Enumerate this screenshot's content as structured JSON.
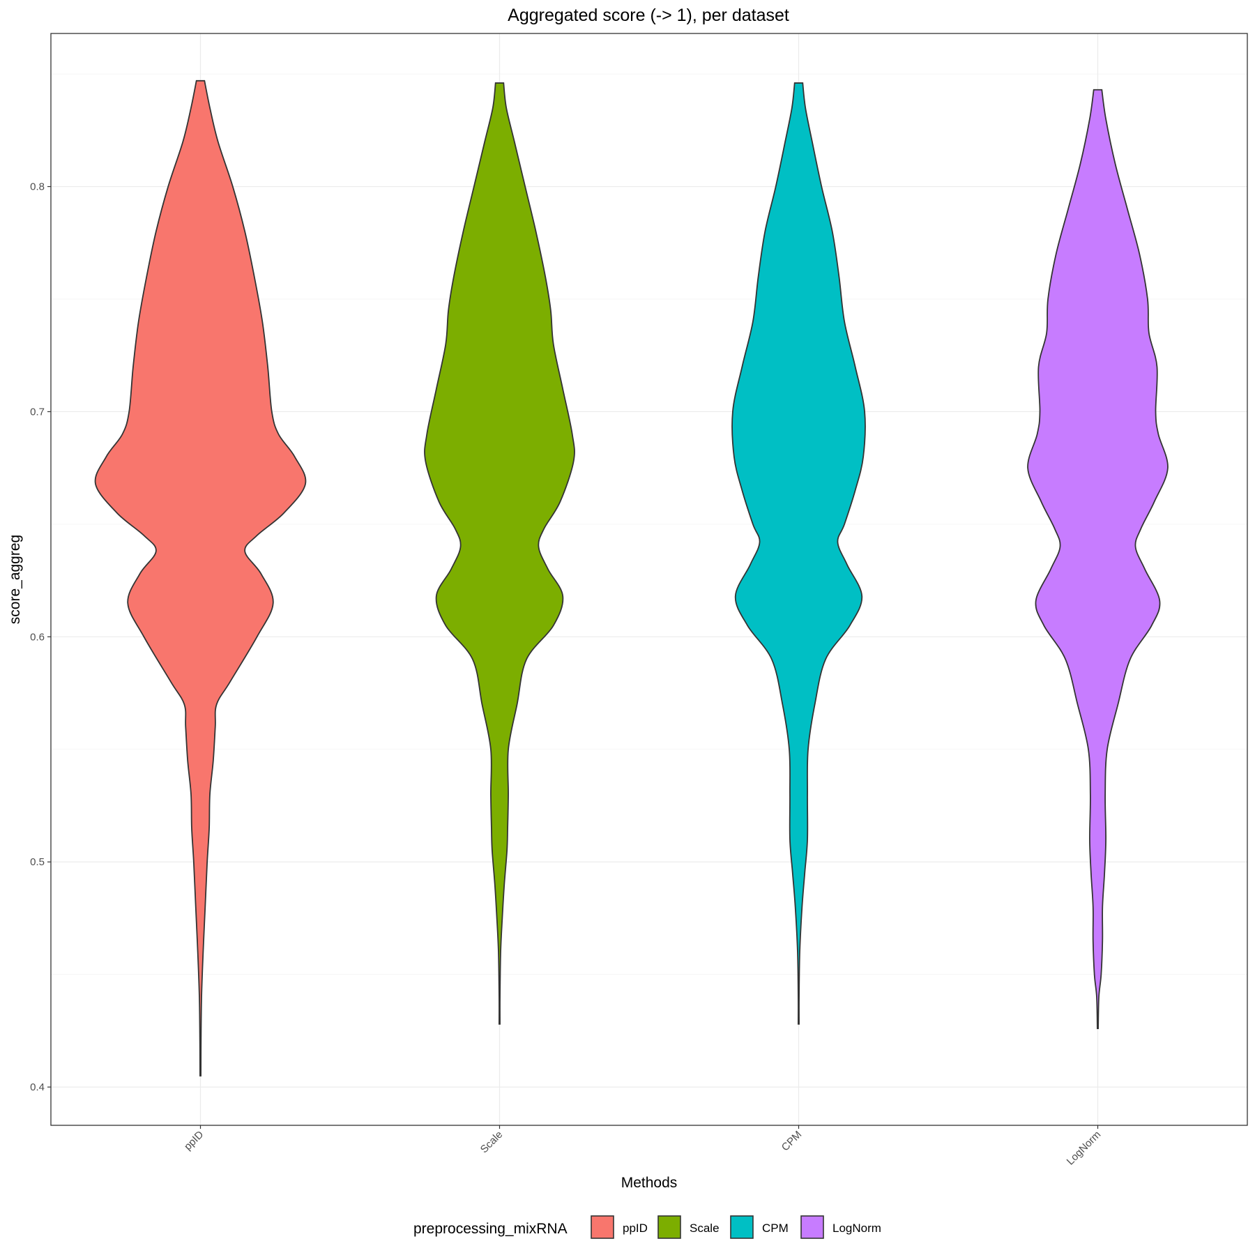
{
  "chart_data": {
    "type": "violin",
    "title": "Aggregated score (-> 1), per dataset",
    "xlabel": "Methods",
    "ylabel": "score_aggreg",
    "categories": [
      "ppID",
      "Scale",
      "CPM",
      "LogNorm"
    ],
    "ylim": [
      0.383,
      0.868
    ],
    "yticks": [
      "0.4",
      "0.5",
      "0.6",
      "0.7",
      "0.8"
    ],
    "ytick_values": [
      0.4,
      0.5,
      0.6,
      0.7,
      0.8
    ],
    "grid": true,
    "legend": {
      "title": "preprocessing_mixRNA",
      "position": "bottom",
      "entries": [
        "ppID",
        "Scale",
        "CPM",
        "LogNorm"
      ]
    },
    "colors": [
      "#F8766D",
      "#7CAE00",
      "#00BFC4",
      "#C77CFF"
    ],
    "series": [
      {
        "category": "ppID",
        "min": 0.405,
        "max": 0.847,
        "profile": [
          [
            0.847,
            0.03
          ],
          [
            0.835,
            0.07
          ],
          [
            0.82,
            0.13
          ],
          [
            0.8,
            0.24
          ],
          [
            0.78,
            0.33
          ],
          [
            0.76,
            0.4
          ],
          [
            0.74,
            0.46
          ],
          [
            0.72,
            0.5
          ],
          [
            0.7,
            0.53
          ],
          [
            0.69,
            0.58
          ],
          [
            0.68,
            0.7
          ],
          [
            0.668,
            0.78
          ],
          [
            0.655,
            0.62
          ],
          [
            0.645,
            0.42
          ],
          [
            0.638,
            0.33
          ],
          [
            0.628,
            0.45
          ],
          [
            0.615,
            0.54
          ],
          [
            0.6,
            0.42
          ],
          [
            0.58,
            0.22
          ],
          [
            0.57,
            0.12
          ],
          [
            0.56,
            0.11
          ],
          [
            0.545,
            0.095
          ],
          [
            0.53,
            0.07
          ],
          [
            0.515,
            0.065
          ],
          [
            0.5,
            0.05
          ],
          [
            0.48,
            0.035
          ],
          [
            0.46,
            0.02
          ],
          [
            0.44,
            0.008
          ],
          [
            0.42,
            0.004
          ],
          [
            0.405,
            0.003
          ]
        ]
      },
      {
        "category": "Scale",
        "min": 0.428,
        "max": 0.846,
        "profile": [
          [
            0.846,
            0.03
          ],
          [
            0.835,
            0.05
          ],
          [
            0.82,
            0.11
          ],
          [
            0.8,
            0.19
          ],
          [
            0.78,
            0.27
          ],
          [
            0.76,
            0.34
          ],
          [
            0.745,
            0.38
          ],
          [
            0.73,
            0.4
          ],
          [
            0.71,
            0.47
          ],
          [
            0.69,
            0.54
          ],
          [
            0.678,
            0.55
          ],
          [
            0.66,
            0.45
          ],
          [
            0.648,
            0.33
          ],
          [
            0.64,
            0.29
          ],
          [
            0.63,
            0.36
          ],
          [
            0.618,
            0.47
          ],
          [
            0.605,
            0.4
          ],
          [
            0.59,
            0.2
          ],
          [
            0.57,
            0.13
          ],
          [
            0.55,
            0.065
          ],
          [
            0.53,
            0.065
          ],
          [
            0.515,
            0.06
          ],
          [
            0.505,
            0.055
          ],
          [
            0.49,
            0.035
          ],
          [
            0.475,
            0.02
          ],
          [
            0.46,
            0.008
          ],
          [
            0.44,
            0.003
          ],
          [
            0.428,
            0.003
          ]
        ]
      },
      {
        "category": "CPM",
        "min": 0.428,
        "max": 0.846,
        "profile": [
          [
            0.846,
            0.03
          ],
          [
            0.835,
            0.05
          ],
          [
            0.82,
            0.1
          ],
          [
            0.8,
            0.17
          ],
          [
            0.78,
            0.25
          ],
          [
            0.76,
            0.3
          ],
          [
            0.74,
            0.34
          ],
          [
            0.72,
            0.42
          ],
          [
            0.7,
            0.49
          ],
          [
            0.68,
            0.48
          ],
          [
            0.665,
            0.42
          ],
          [
            0.65,
            0.34
          ],
          [
            0.642,
            0.29
          ],
          [
            0.632,
            0.36
          ],
          [
            0.618,
            0.47
          ],
          [
            0.605,
            0.38
          ],
          [
            0.59,
            0.2
          ],
          [
            0.57,
            0.12
          ],
          [
            0.55,
            0.07
          ],
          [
            0.53,
            0.065
          ],
          [
            0.51,
            0.065
          ],
          [
            0.495,
            0.045
          ],
          [
            0.48,
            0.025
          ],
          [
            0.46,
            0.008
          ],
          [
            0.44,
            0.003
          ],
          [
            0.428,
            0.003
          ]
        ]
      },
      {
        "category": "LogNorm",
        "min": 0.426,
        "max": 0.843,
        "profile": [
          [
            0.843,
            0.03
          ],
          [
            0.83,
            0.06
          ],
          [
            0.81,
            0.13
          ],
          [
            0.79,
            0.22
          ],
          [
            0.77,
            0.31
          ],
          [
            0.75,
            0.37
          ],
          [
            0.735,
            0.38
          ],
          [
            0.72,
            0.44
          ],
          [
            0.7,
            0.43
          ],
          [
            0.69,
            0.45
          ],
          [
            0.675,
            0.52
          ],
          [
            0.66,
            0.42
          ],
          [
            0.648,
            0.32
          ],
          [
            0.64,
            0.28
          ],
          [
            0.63,
            0.35
          ],
          [
            0.616,
            0.46
          ],
          [
            0.605,
            0.4
          ],
          [
            0.59,
            0.24
          ],
          [
            0.57,
            0.15
          ],
          [
            0.55,
            0.07
          ],
          [
            0.53,
            0.055
          ],
          [
            0.51,
            0.06
          ],
          [
            0.495,
            0.05
          ],
          [
            0.48,
            0.035
          ],
          [
            0.465,
            0.035
          ],
          [
            0.45,
            0.025
          ],
          [
            0.44,
            0.008
          ],
          [
            0.426,
            0.003
          ]
        ]
      }
    ]
  }
}
